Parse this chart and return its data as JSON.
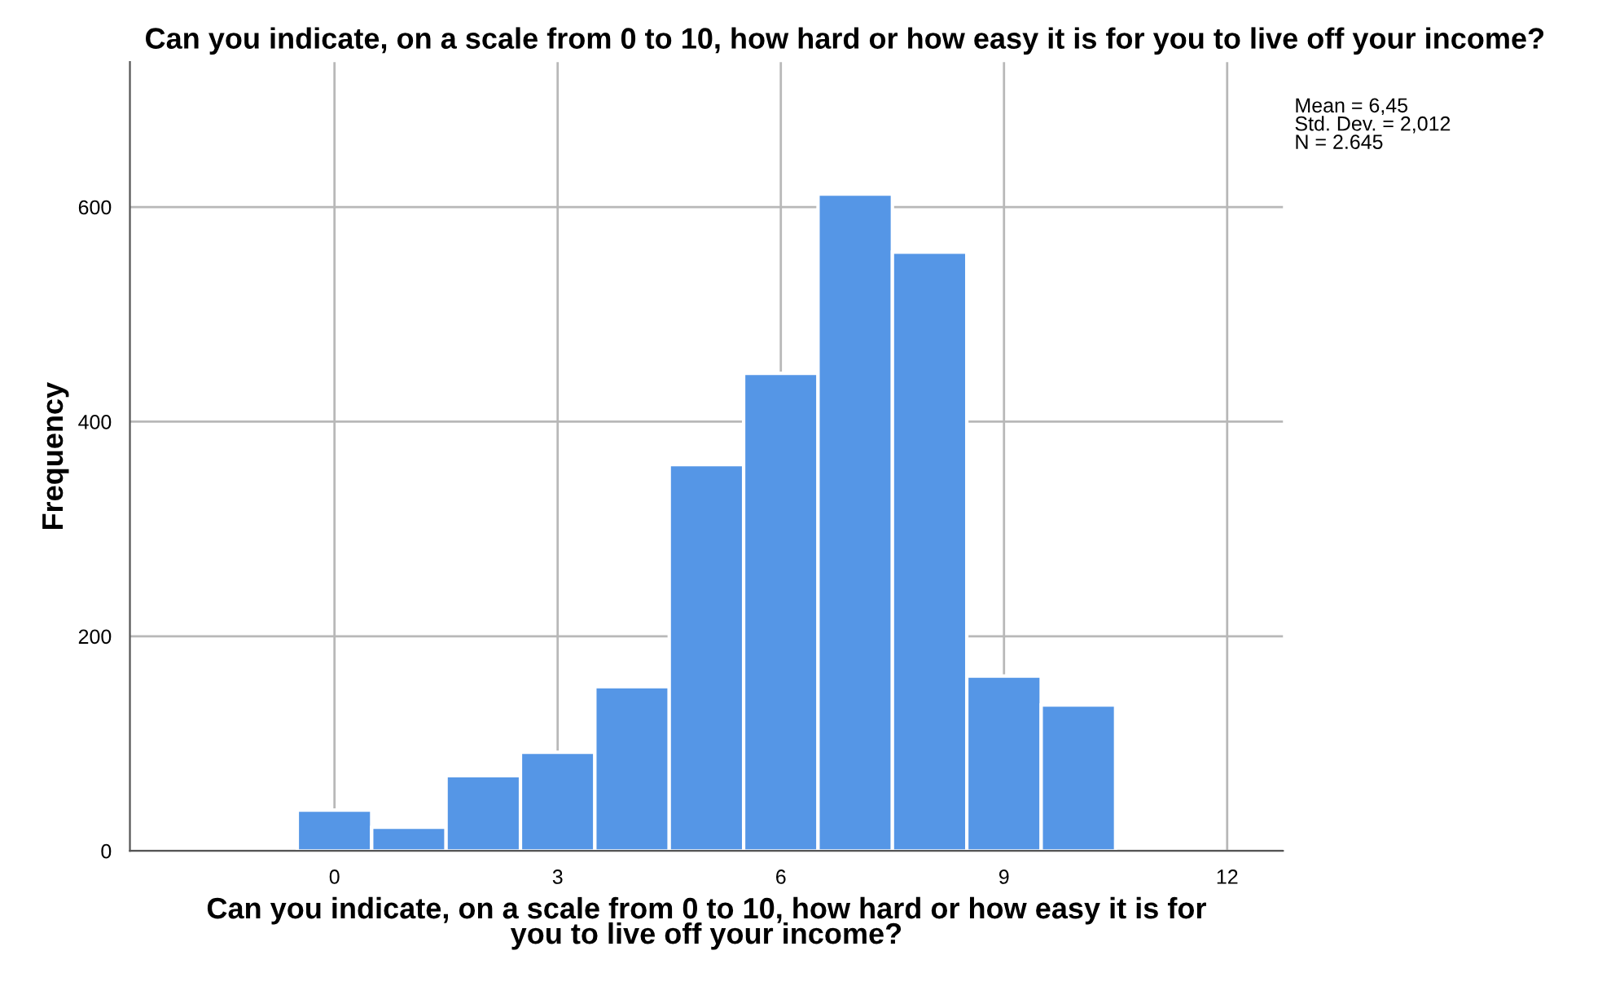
{
  "chart_data": {
    "type": "histogram",
    "title": "Can you indicate, on a scale from 0 to 10, how hard or how easy it is for you to live off your income?",
    "xlabel": "Can you indicate, on a scale from 0 to 10, how hard or how easy it is for\nyou to live off your income?",
    "ylabel": "Frequency",
    "bins": [
      -0.5,
      0.5,
      1.5,
      2.5,
      3.5,
      4.5,
      5.5,
      6.5,
      7.5,
      8.5,
      9.5,
      10.5
    ],
    "values": [
      38,
      22,
      70,
      92,
      153,
      360,
      445,
      612,
      558,
      163,
      136
    ],
    "color": "#5596e6",
    "xlim": [
      -2.75,
      12.75
    ],
    "ylim": [
      0,
      735
    ],
    "xticks": [
      0,
      3,
      6,
      9,
      12
    ],
    "yticks": [
      0,
      200,
      400,
      600
    ],
    "grid": true,
    "annotations": [
      "Mean = 6,45\nStd. Dev. = 2,012\nN = 2.645"
    ]
  }
}
